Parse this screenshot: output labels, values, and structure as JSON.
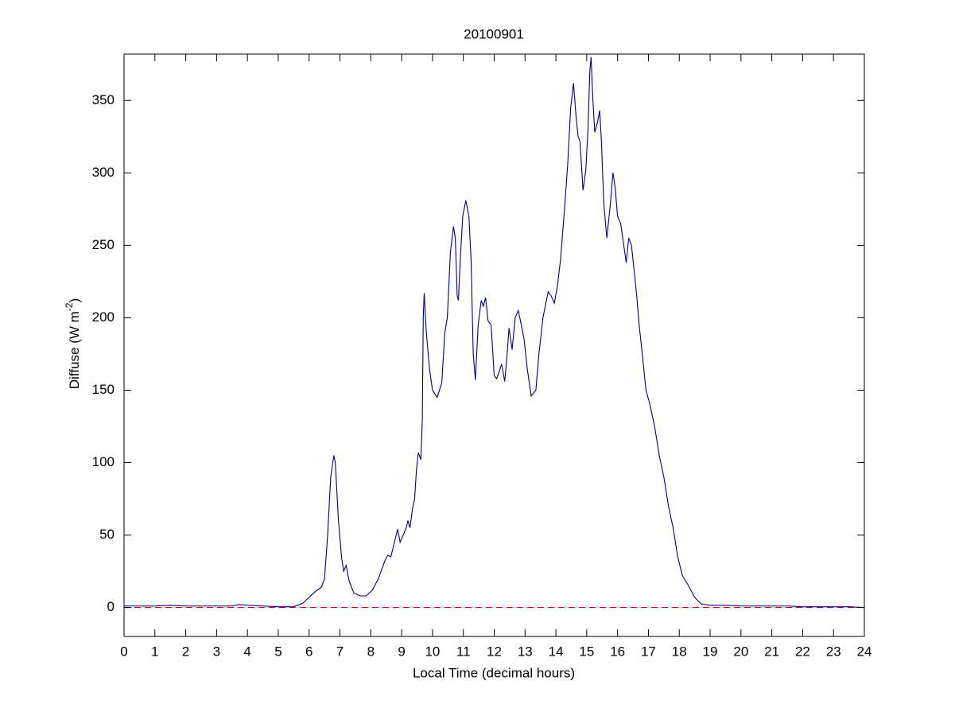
{
  "chart_data": {
    "type": "line",
    "title": "20100901",
    "x_label": "Local Time (decimal hours)",
    "y_label": {
      "text": "Diffuse (W m",
      "superscript": "-2",
      "suffix": ")"
    },
    "color": "#00007f",
    "reference_line": {
      "value": 0,
      "color": "#cc0000",
      "dashed": true
    },
    "xlim": [
      0,
      24
    ],
    "xticks": [
      0,
      1,
      2,
      3,
      4,
      5,
      6,
      7,
      8,
      9,
      10,
      11,
      12,
      13,
      14,
      15,
      16,
      17,
      18,
      19,
      20,
      21,
      22,
      23,
      24
    ],
    "ylim": [
      -20,
      382
    ],
    "yticks": [
      0,
      50,
      100,
      150,
      200,
      250,
      300,
      350
    ],
    "grid": false,
    "x": [
      0,
      0.5,
      1,
      1.5,
      2,
      2.5,
      3,
      3.5,
      3.7,
      4,
      4.5,
      5,
      5.5,
      5.8,
      6,
      6.2,
      6.4,
      6.5,
      6.6,
      6.7,
      6.8,
      6.85,
      6.95,
      7.05,
      7.12,
      7.2,
      7.3,
      7.45,
      7.65,
      7.85,
      8.05,
      8.25,
      8.45,
      8.55,
      8.65,
      8.8,
      8.87,
      8.95,
      9.05,
      9.15,
      9.2,
      9.27,
      9.35,
      9.42,
      9.48,
      9.54,
      9.62,
      9.67,
      9.7,
      9.73,
      9.8,
      9.9,
      10,
      10.15,
      10.3,
      10.4,
      10.48,
      10.58,
      10.68,
      10.74,
      10.8,
      10.84,
      10.9,
      10.98,
      11.08,
      11.18,
      11.25,
      11.32,
      11.39,
      11.48,
      11.58,
      11.65,
      11.72,
      11.8,
      11.9,
      12,
      12.08,
      12.15,
      12.24,
      12.34,
      12.42,
      12.48,
      12.58,
      12.68,
      12.78,
      12.88,
      12.97,
      13.07,
      13.2,
      13.35,
      13.45,
      13.58,
      13.75,
      13.85,
      13.95,
      14.05,
      14.15,
      14.28,
      14.38,
      14.48,
      14.57,
      14.65,
      14.72,
      14.78,
      14.88,
      14.97,
      15.04,
      15.1,
      15.14,
      15.2,
      15.26,
      15.35,
      15.42,
      15.48,
      15.55,
      15.65,
      15.75,
      15.85,
      15.92,
      16,
      16.1,
      16.2,
      16.28,
      16.36,
      16.45,
      16.55,
      16.62,
      16.7,
      16.8,
      16.92,
      17.05,
      17.2,
      17.35,
      17.5,
      17.65,
      17.8,
      17.95,
      18.1,
      18.3,
      18.5,
      18.7,
      19,
      19.5,
      20,
      20.5,
      21,
      21.5,
      22,
      22.5,
      23,
      23.5,
      24
    ],
    "values": [
      1,
      1,
      1,
      1.5,
      1,
      1,
      1,
      1,
      2,
      1.5,
      1,
      0.5,
      0.5,
      3,
      7,
      11,
      14,
      20,
      50,
      90,
      105,
      100,
      60,
      35,
      25,
      29,
      18,
      10,
      8,
      8,
      12,
      20,
      32,
      36,
      35,
      48,
      54,
      45,
      50,
      55,
      60,
      55,
      68,
      75,
      95,
      107,
      102,
      130,
      200,
      217,
      190,
      165,
      150,
      145,
      155,
      190,
      200,
      245,
      263,
      255,
      215,
      212,
      240,
      270,
      281,
      270,
      240,
      175,
      157,
      195,
      212,
      208,
      214,
      198,
      195,
      160,
      158,
      162,
      168,
      156,
      175,
      193,
      178,
      200,
      205,
      195,
      185,
      165,
      146,
      150,
      175,
      200,
      218,
      215,
      210,
      222,
      240,
      275,
      305,
      345,
      362,
      340,
      325,
      322,
      288,
      302,
      330,
      370,
      380,
      350,
      328,
      335,
      343,
      320,
      280,
      255,
      275,
      300,
      290,
      270,
      265,
      250,
      238,
      255,
      250,
      230,
      215,
      195,
      175,
      150,
      140,
      125,
      105,
      90,
      70,
      55,
      35,
      22,
      15,
      7,
      2.5,
      1.5,
      1.5,
      1,
      1,
      1,
      1,
      0.5,
      0.5,
      0.5,
      0.5,
      0
    ]
  }
}
